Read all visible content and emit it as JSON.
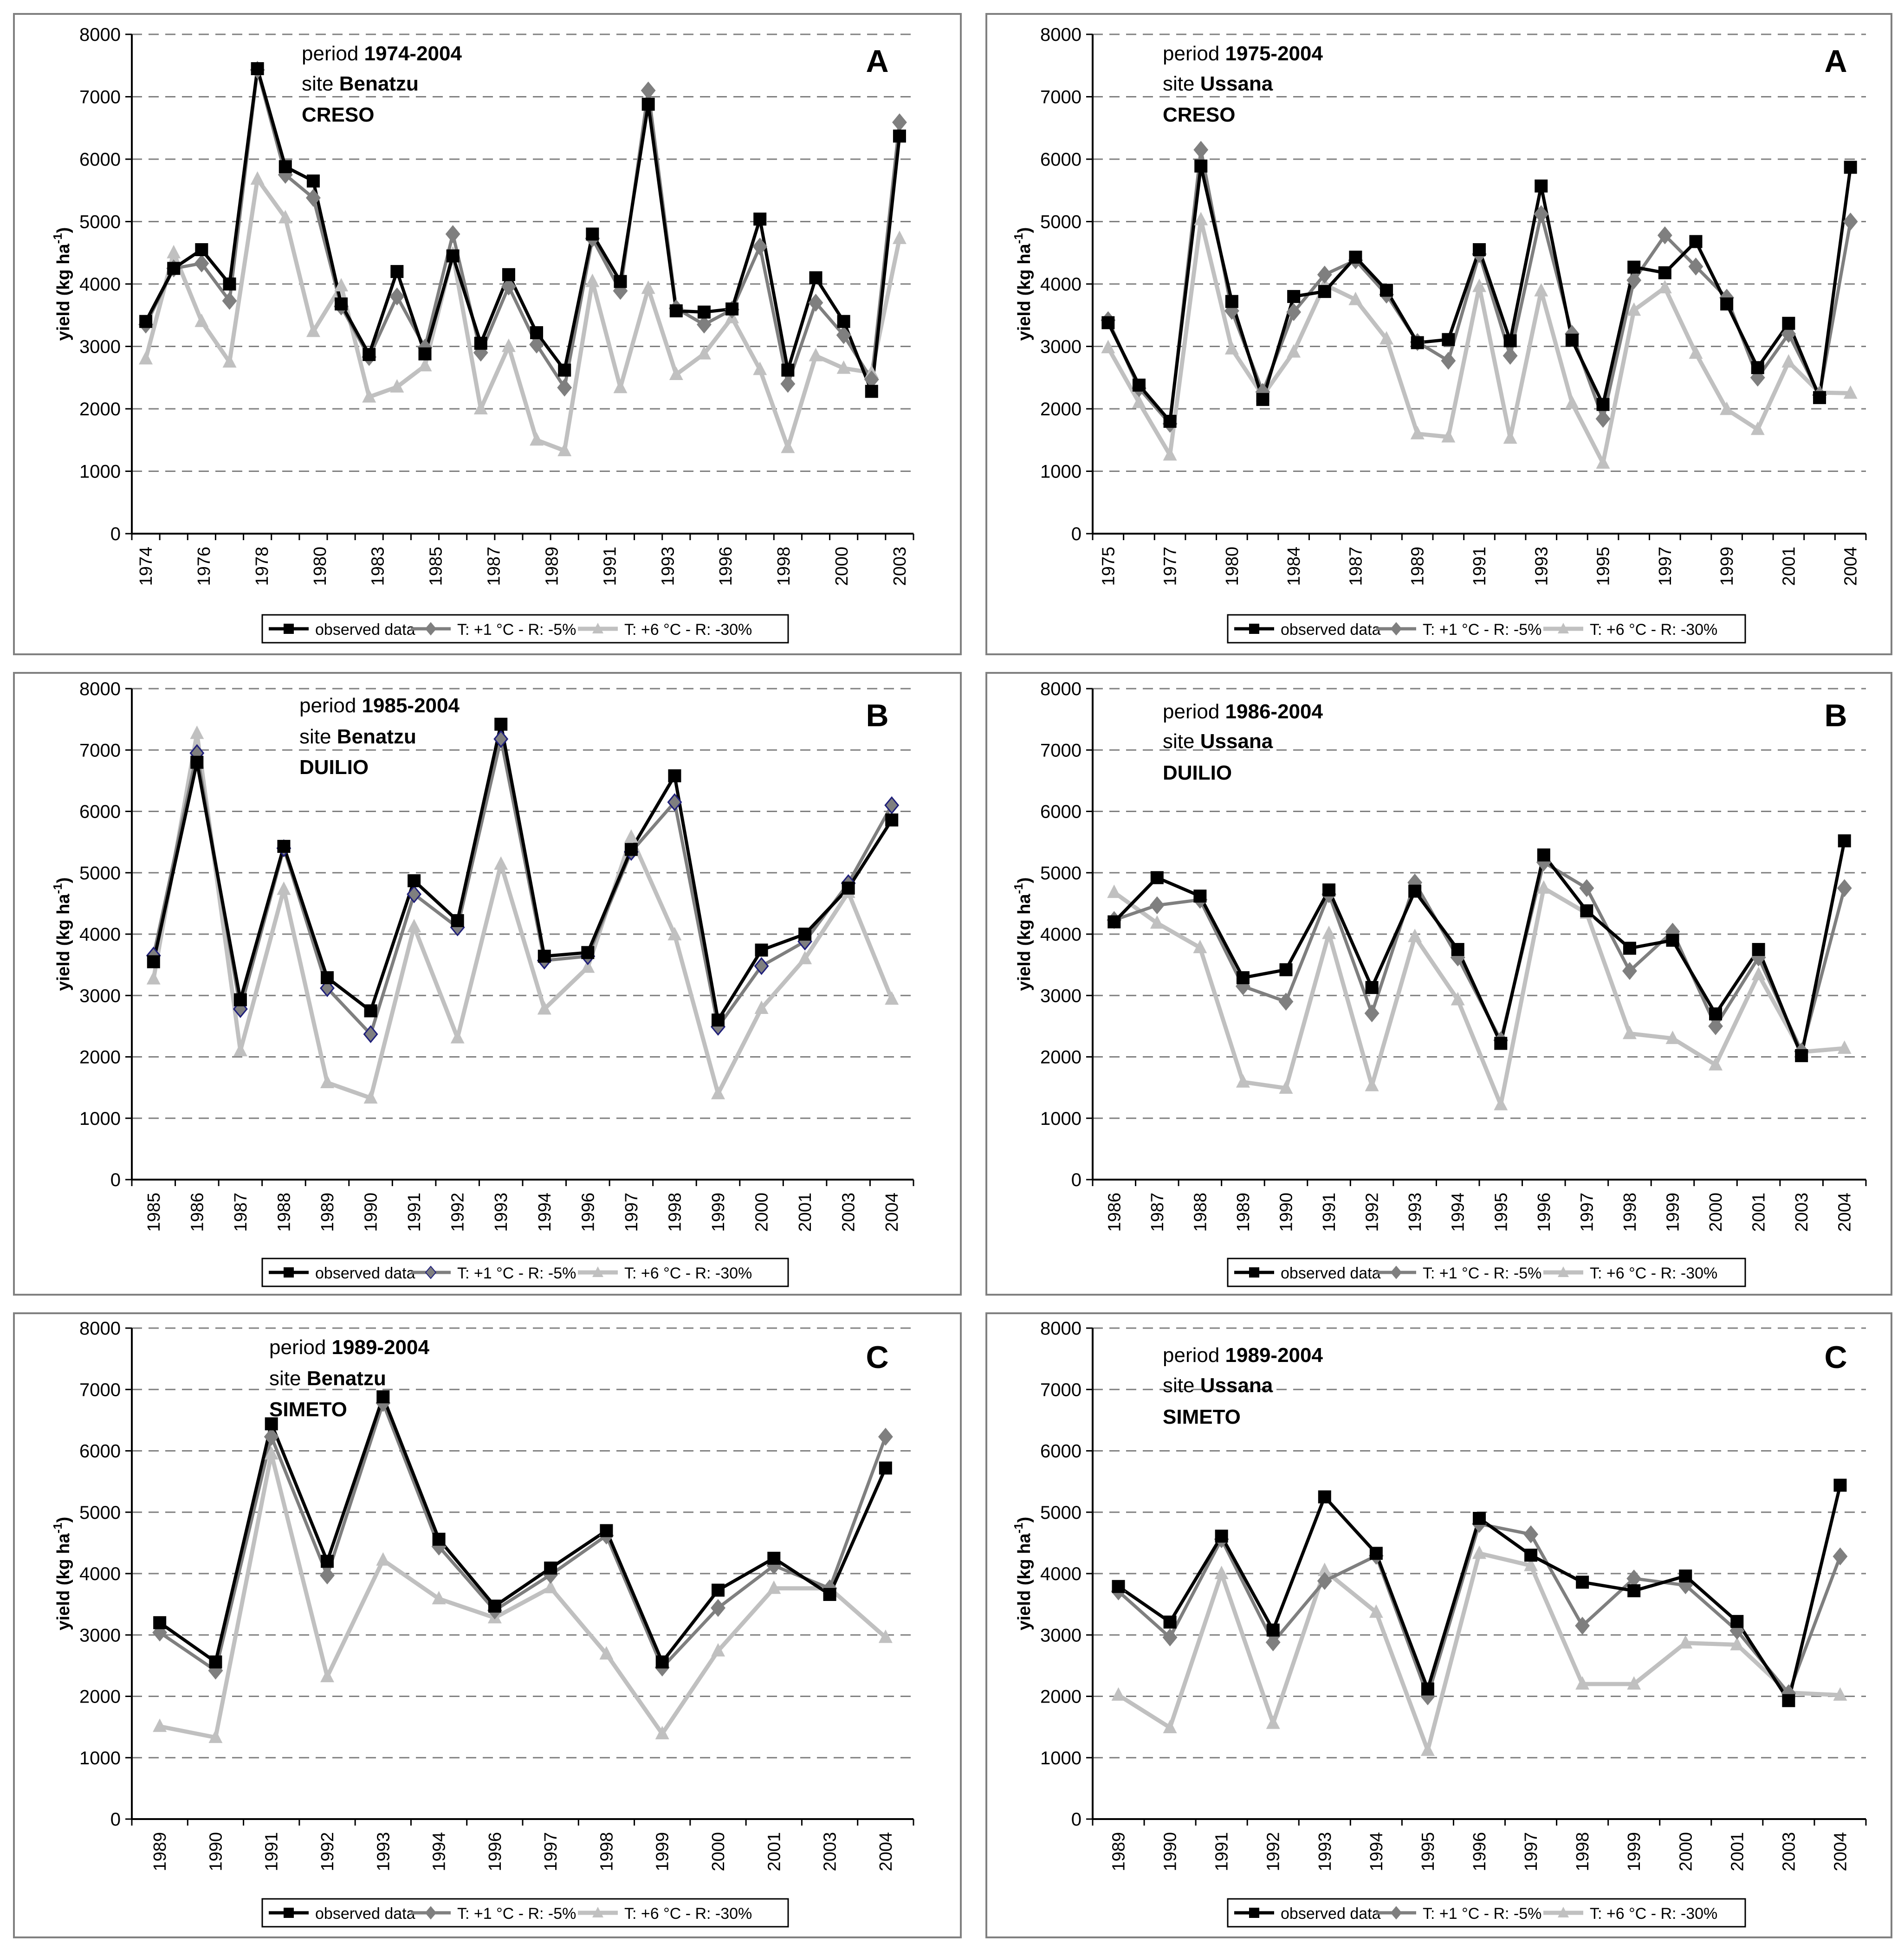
{
  "colors": {
    "observed": "#000000",
    "plus1": "#7f7f7f",
    "plus6": "#c0c0c0",
    "grid": "#808080",
    "frame": "#808080",
    "diamond_edge_duilio": "#1f1f7a"
  },
  "legend_labels": [
    "observed data",
    "T: +1 °C - R: -5%",
    "T: +6 °C - R: -30%"
  ],
  "ylabel": "yield (kg ha",
  "ylabel_sup": "-1",
  "ylabel_close": ")",
  "yticks": [
    "0",
    "1000",
    "2000",
    "3000",
    "4000",
    "5000",
    "6000",
    "7000",
    "8000"
  ],
  "chart_data": [
    {
      "type": "line",
      "panel": "A",
      "period_label": "period ",
      "period": "1974-2004",
      "site_label": "site ",
      "site": "Benatzu",
      "cultivar": "CRESO",
      "ylim": [
        0,
        8000
      ],
      "x": [
        1974,
        1975,
        1976,
        1977,
        1978,
        1979,
        1980,
        1982,
        1983,
        1984,
        1985,
        1986,
        1987,
        1988,
        1989,
        1990,
        1991,
        1992,
        1993,
        1995,
        1996,
        1997,
        1998,
        1999,
        2000,
        2002,
        2003,
        2004
      ],
      "xtick_labels": [
        "1974",
        "1976",
        "1978",
        "1980",
        "1983",
        "1985",
        "1987",
        "1989",
        "1991",
        "1993",
        "1996",
        "1998",
        "2000",
        "2003"
      ],
      "series": [
        {
          "name": "observed data",
          "values": [
            3400,
            4250,
            4550,
            4000,
            7450,
            5880,
            5650,
            3680,
            2870,
            4200,
            2880,
            4450,
            3050,
            4150,
            3220,
            2620,
            4800,
            4040,
            6880,
            3570,
            3550,
            3600,
            5040,
            2620,
            4100,
            3400,
            2280,
            6370
          ]
        },
        {
          "name": "T: +1 °C - R: -5%",
          "values": [
            3350,
            4250,
            4330,
            3730,
            7430,
            5750,
            5380,
            3640,
            2830,
            3800,
            2980,
            4800,
            2900,
            3960,
            3030,
            2340,
            4730,
            3890,
            7100,
            3610,
            3350,
            3590,
            4600,
            2400,
            3700,
            3180,
            2470,
            6590
          ]
        },
        {
          "name": "T: +6 °C - R: -30%",
          "values": [
            2800,
            4500,
            3400,
            2750,
            5680,
            5060,
            3240,
            3970,
            2190,
            2350,
            2690,
            4480,
            2000,
            3000,
            1500,
            1330,
            4040,
            2340,
            3930,
            2550,
            2880,
            3460,
            2630,
            1380,
            2850,
            2650,
            2580,
            4730
          ]
        }
      ]
    },
    {
      "type": "line",
      "panel": "A",
      "period_label": "period ",
      "period": "1975-2004",
      "site_label": "site ",
      "site": "Ussana",
      "cultivar": "CRESO",
      "ylim": [
        0,
        8000
      ],
      "x": [
        1975,
        1976,
        1977,
        1979,
        1980,
        1982,
        1984,
        1985,
        1987,
        1988,
        1989,
        1990,
        1991,
        1992,
        1993,
        1994,
        1995,
        1996,
        1997,
        1998,
        1999,
        2000,
        2001,
        2002,
        2004
      ],
      "xtick_labels": [
        "1975",
        "1977",
        "1980",
        "1984",
        "1987",
        "1989",
        "1991",
        "1993",
        "1995",
        "1997",
        "1999",
        "2001",
        "2004"
      ],
      "series": [
        {
          "name": "observed data",
          "values": [
            3380,
            2380,
            1800,
            5890,
            3720,
            2150,
            3800,
            3880,
            4430,
            3900,
            3060,
            3110,
            4550,
            3090,
            5570,
            3100,
            2070,
            4270,
            4180,
            4680,
            3680,
            2660,
            3370,
            2180,
            5870
          ]
        },
        {
          "name": "T: +1 °C - R: -5%",
          "values": [
            3420,
            2330,
            1760,
            6150,
            3570,
            2270,
            3550,
            4150,
            4380,
            3830,
            3070,
            2770,
            4480,
            2850,
            5120,
            3200,
            1840,
            4060,
            4780,
            4280,
            3780,
            2500,
            3200,
            2220,
            5000
          ]
        },
        {
          "name": "T: +6 °C - R: -30%",
          "values": [
            2980,
            2100,
            1260,
            5030,
            2960,
            2210,
            2910,
            3990,
            3750,
            3120,
            1600,
            1550,
            3960,
            1530,
            3890,
            2090,
            1130,
            3580,
            3940,
            2890,
            1990,
            1670,
            2750,
            2260,
            2250
          ]
        }
      ]
    },
    {
      "type": "line",
      "panel": "B",
      "period_label": "period ",
      "period": "1985-2004",
      "site_label": "site ",
      "site": "Benatzu",
      "cultivar": "DUILIO",
      "ylim": [
        0,
        8000
      ],
      "x": [
        1985,
        1986,
        1987,
        1988,
        1989,
        1990,
        1991,
        1992,
        1993,
        1994,
        1996,
        1997,
        1998,
        1999,
        2000,
        2001,
        2003,
        2004
      ],
      "xtick_labels": [
        "1985",
        "1986",
        "1987",
        "1988",
        "1989",
        "1990",
        "1991",
        "1992",
        "1993",
        "1994",
        "1996",
        "1997",
        "1998",
        "1999",
        "2000",
        "2001",
        "2003",
        "2004"
      ],
      "series": [
        {
          "name": "observed data",
          "values": [
            3550,
            6800,
            2930,
            5430,
            3290,
            2750,
            4870,
            4220,
            7420,
            3640,
            3700,
            5380,
            6580,
            2600,
            3740,
            4000,
            4750,
            5860
          ]
        },
        {
          "name": "T: +1 °C - R: -5%",
          "values": [
            3650,
            6950,
            2780,
            5400,
            3120,
            2370,
            4650,
            4110,
            7180,
            3570,
            3640,
            5340,
            6150,
            2490,
            3480,
            3880,
            4830,
            6100
          ]
        },
        {
          "name": "T: +6 °C - R: -30%",
          "values": [
            3270,
            7270,
            2100,
            4730,
            1580,
            1330,
            4120,
            2310,
            5140,
            2780,
            3460,
            5580,
            3990,
            1400,
            2790,
            3600,
            4680,
            2940
          ]
        }
      ]
    },
    {
      "type": "line",
      "panel": "B",
      "period_label": "period ",
      "period": "1986-2004",
      "site_label": "site ",
      "site": "Ussana",
      "cultivar": "DUILIO",
      "ylim": [
        0,
        8000
      ],
      "x": [
        1986,
        1987,
        1988,
        1989,
        1990,
        1991,
        1992,
        1993,
        1994,
        1995,
        1996,
        1997,
        1998,
        1999,
        2000,
        2001,
        2003,
        2004
      ],
      "xtick_labels": [
        "1986",
        "1987",
        "1988",
        "1989",
        "1990",
        "1991",
        "1992",
        "1993",
        "1994",
        "1995",
        "1996",
        "1997",
        "1998",
        "1999",
        "2000",
        "2001",
        "2003",
        "2004"
      ],
      "series": [
        {
          "name": "observed data",
          "values": [
            4200,
            4920,
            4620,
            3290,
            3420,
            4720,
            3130,
            4700,
            3750,
            2220,
            5290,
            4380,
            3770,
            3900,
            2700,
            3750,
            2020,
            5520
          ]
        },
        {
          "name": "T: +1 °C - R: -5%",
          "values": [
            4230,
            4470,
            4560,
            3150,
            2900,
            4650,
            2710,
            4840,
            3620,
            2270,
            5170,
            4750,
            3400,
            4040,
            2500,
            3620,
            2090,
            4750
          ]
        },
        {
          "name": "T: +6 °C - R: -30%",
          "values": [
            4680,
            4180,
            3780,
            1590,
            1490,
            4010,
            1530,
            3960,
            2930,
            1220,
            4750,
            4340,
            2380,
            2300,
            1870,
            3340,
            2080,
            2140
          ]
        }
      ]
    },
    {
      "type": "line",
      "panel": "C",
      "period_label": "period ",
      "period": "1989-2004",
      "site_label": "site ",
      "site": "Benatzu",
      "cultivar": "SIMETO",
      "ylim": [
        0,
        8000
      ],
      "x": [
        1989,
        1990,
        1991,
        1992,
        1993,
        1994,
        1996,
        1997,
        1998,
        1999,
        2000,
        2001,
        2003,
        2004
      ],
      "xtick_labels": [
        "1989",
        "1990",
        "1991",
        "1992",
        "1993",
        "1994",
        "1996",
        "1997",
        "1998",
        "1999",
        "2000",
        "2001",
        "2003",
        "2004"
      ],
      "series": [
        {
          "name": "observed data",
          "values": [
            3200,
            2560,
            6440,
            4200,
            6880,
            4560,
            3470,
            4090,
            4700,
            2560,
            3730,
            4250,
            3660,
            5720
          ]
        },
        {
          "name": "T: +1 °C - R: -5%",
          "values": [
            3040,
            2420,
            6230,
            3970,
            6780,
            4440,
            3400,
            3980,
            4620,
            2470,
            3440,
            4130,
            3760,
            6230
          ]
        },
        {
          "name": "T: +6 °C - R: -30%",
          "values": [
            1510,
            1330,
            5950,
            2320,
            4220,
            3590,
            3280,
            3770,
            2690,
            1390,
            2740,
            3760,
            3760,
            2960
          ]
        }
      ]
    },
    {
      "type": "line",
      "panel": "C",
      "period_label": "period ",
      "period": "1989-2004",
      "site_label": "site ",
      "site": "Ussana",
      "cultivar": "SIMETO",
      "ylim": [
        0,
        8000
      ],
      "x": [
        1989,
        1990,
        1991,
        1992,
        1993,
        1994,
        1995,
        1996,
        1997,
        1998,
        1999,
        2000,
        2001,
        2003,
        2004
      ],
      "xtick_labels": [
        "1989",
        "1990",
        "1991",
        "1992",
        "1993",
        "1994",
        "1995",
        "1996",
        "1997",
        "1998",
        "1999",
        "2000",
        "2001",
        "2003",
        "2004"
      ],
      "series": [
        {
          "name": "observed data",
          "values": [
            3790,
            3210,
            4610,
            3080,
            5250,
            4330,
            2120,
            4900,
            4300,
            3860,
            3720,
            3960,
            3220,
            1930,
            5440
          ]
        },
        {
          "name": "T: +1 °C - R: -5%",
          "values": [
            3710,
            2960,
            4560,
            2880,
            3880,
            4290,
            2000,
            4810,
            4640,
            3150,
            3920,
            3810,
            3070,
            2050,
            4280
          ]
        },
        {
          "name": "T: +6 °C - R: -30%",
          "values": [
            2020,
            1490,
            4000,
            1560,
            4050,
            3370,
            1120,
            4330,
            4130,
            2200,
            2200,
            2870,
            2840,
            2060,
            2020
          ]
        }
      ]
    }
  ]
}
